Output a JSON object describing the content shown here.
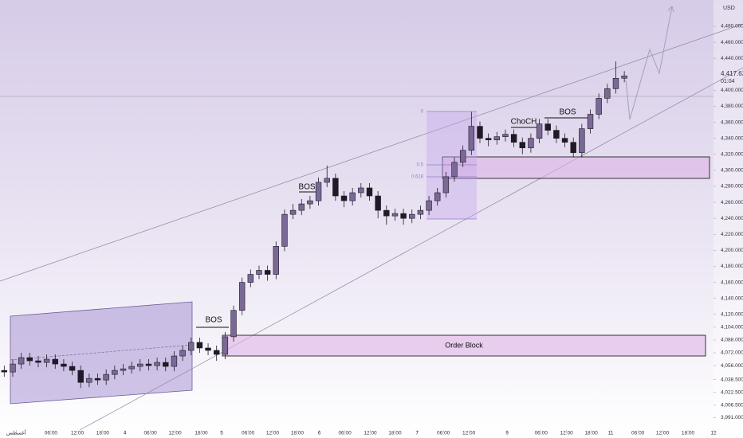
{
  "chart_data": {
    "type": "candlestick",
    "currency": "USD",
    "last_price": "4,417.630",
    "countdown": "01:04",
    "annotations": [
      "BOS",
      "BOS",
      "ChoCH",
      "BOS",
      "Order Block",
      "0",
      "0.5",
      "0.618"
    ],
    "up_color": "#7a6896",
    "down_color": "#1f1a26",
    "open": [
      4050,
      4048,
      4058,
      4066,
      4062,
      4060,
      4064,
      4058,
      4055,
      4050,
      4035,
      4040,
      4038,
      4045,
      4050,
      4052,
      4055,
      4058,
      4056,
      4060,
      4055,
      4068,
      4075,
      4085,
      4078,
      4075,
      4070,
      4092,
      4125,
      4160,
      4170,
      4175,
      4170,
      4205,
      4245,
      4250,
      4258,
      4262,
      4285,
      4290,
      4268,
      4262,
      4272,
      4278,
      4268,
      4250,
      4243,
      4246,
      4240,
      4245,
      4250,
      4262,
      4272,
      4292,
      4310,
      4325,
      4355,
      4340,
      4338,
      4342,
      4345,
      4335,
      4328,
      4340,
      4358,
      4350,
      4340,
      4335,
      4322,
      4352,
      4370,
      4390,
      4402,
      4415
    ],
    "high": [
      4056,
      4064,
      4072,
      4072,
      4068,
      4070,
      4070,
      4064,
      4061,
      4056,
      4046,
      4046,
      4051,
      4056,
      4058,
      4061,
      4064,
      4064,
      4066,
      4066,
      4074,
      4081,
      4091,
      4091,
      4084,
      4081,
      4098,
      4131,
      4166,
      4176,
      4181,
      4181,
      4211,
      4251,
      4258,
      4264,
      4268,
      4291,
      4306,
      4296,
      4274,
      4278,
      4284,
      4284,
      4274,
      4256,
      4252,
      4252,
      4251,
      4256,
      4268,
      4278,
      4298,
      4316,
      4331,
      4373,
      4361,
      4346,
      4348,
      4351,
      4351,
      4341,
      4346,
      4364,
      4364,
      4356,
      4346,
      4341,
      4358,
      4376,
      4396,
      4408,
      4436,
      4424
    ],
    "low": [
      4042,
      4042,
      4052,
      4056,
      4054,
      4054,
      4052,
      4049,
      4044,
      4028,
      4029,
      4032,
      4032,
      4039,
      4044,
      4046,
      4049,
      4050,
      4050,
      4049,
      4049,
      4062,
      4069,
      4072,
      4069,
      4062,
      4064,
      4086,
      4119,
      4154,
      4164,
      4162,
      4164,
      4199,
      4239,
      4244,
      4252,
      4256,
      4279,
      4262,
      4254,
      4256,
      4266,
      4262,
      4240,
      4232,
      4237,
      4232,
      4234,
      4239,
      4244,
      4256,
      4266,
      4286,
      4304,
      4319,
      4334,
      4330,
      4332,
      4336,
      4329,
      4320,
      4322,
      4334,
      4344,
      4334,
      4329,
      4316,
      4316,
      4346,
      4364,
      4384,
      4396,
      4410
    ],
    "close": [
      4048,
      4058,
      4066,
      4062,
      4060,
      4064,
      4058,
      4055,
      4050,
      4035,
      4040,
      4038,
      4045,
      4050,
      4052,
      4055,
      4058,
      4056,
      4060,
      4055,
      4068,
      4075,
      4085,
      4078,
      4075,
      4070,
      4092,
      4125,
      4160,
      4170,
      4175,
      4170,
      4205,
      4245,
      4250,
      4258,
      4262,
      4285,
      4290,
      4268,
      4262,
      4272,
      4278,
      4268,
      4250,
      4243,
      4246,
      4240,
      4245,
      4250,
      4262,
      4272,
      4292,
      4310,
      4325,
      4355,
      4340,
      4338,
      4342,
      4345,
      4335,
      4328,
      4340,
      4358,
      4350,
      4340,
      4335,
      4322,
      4352,
      4370,
      4390,
      4402,
      4415,
      4418
    ],
    "xlim": [
      0,
      84
    ],
    "xticks": [
      {
        "value": 1.9,
        "label": "أغسطس"
      },
      {
        "value": 6,
        "label": "06:00"
      },
      {
        "value": 9.1,
        "label": "12:00"
      },
      {
        "value": 12.1,
        "label": "18:00"
      },
      {
        "value": 14.7,
        "label": "4"
      },
      {
        "value": 17.7,
        "label": "06:00"
      },
      {
        "value": 20.6,
        "label": "12:00"
      },
      {
        "value": 23.7,
        "label": "18:00"
      },
      {
        "value": 26.1,
        "label": "5"
      },
      {
        "value": 29.2,
        "label": "06:00"
      },
      {
        "value": 32.1,
        "label": "12:00"
      },
      {
        "value": 35,
        "label": "18:00"
      },
      {
        "value": 37.6,
        "label": "6"
      },
      {
        "value": 40.6,
        "label": "06:00"
      },
      {
        "value": 43.6,
        "label": "12:00"
      },
      {
        "value": 46.5,
        "label": "18:00"
      },
      {
        "value": 49.1,
        "label": "7"
      },
      {
        "value": 52.2,
        "label": "06:00"
      },
      {
        "value": 55.2,
        "label": "12:00"
      },
      {
        "value": 59.7,
        "label": "9"
      },
      {
        "value": 63.7,
        "label": "06:00"
      },
      {
        "value": 66.7,
        "label": "12:00"
      },
      {
        "value": 69.6,
        "label": "18:00"
      },
      {
        "value": 71.9,
        "label": "11"
      },
      {
        "value": 75.1,
        "label": "06:00"
      },
      {
        "value": 78,
        "label": "12:00"
      },
      {
        "value": 81,
        "label": "18:00"
      },
      {
        "value": 84,
        "label": "12"
      }
    ],
    "ylim": [
      3975.5,
      4512.8
    ],
    "yticks": [
      {
        "value": 4480,
        "label": "4,480.000"
      },
      {
        "value": 4460,
        "label": "4,460.000"
      },
      {
        "value": 4440,
        "label": "4,440.000"
      },
      {
        "value": 4400,
        "label": "4,400.000"
      },
      {
        "value": 4380,
        "label": "4,380.000"
      },
      {
        "value": 4360,
        "label": "4,360.000"
      },
      {
        "value": 4340,
        "label": "4,340.000"
      },
      {
        "value": 4320,
        "label": "4,320.000"
      },
      {
        "value": 4300,
        "label": "4,300.000"
      },
      {
        "value": 4280,
        "label": "4,280.000"
      },
      {
        "value": 4260,
        "label": "4,260.000"
      },
      {
        "value": 4240,
        "label": "4,240.000"
      },
      {
        "value": 4220,
        "label": "4,220.000"
      },
      {
        "value": 4200,
        "label": "4,200.000"
      },
      {
        "value": 4180,
        "label": "4,180.000"
      },
      {
        "value": 4160,
        "label": "4,160.000"
      },
      {
        "value": 4140,
        "label": "4,140.000"
      },
      {
        "value": 4120,
        "label": "4,120.000"
      },
      {
        "value": 4104,
        "label": "4,104.000"
      },
      {
        "value": 4088,
        "label": "4,088.000"
      },
      {
        "value": 4072,
        "label": "4,072.000"
      },
      {
        "value": 4056,
        "label": "4,056.000"
      },
      {
        "value": 4038.5,
        "label": "4,038.500"
      },
      {
        "value": 4022.5,
        "label": "4,022.500"
      },
      {
        "value": 4006.5,
        "label": "4,006.500"
      },
      {
        "value": 3991,
        "label": "3,991.000"
      }
    ]
  }
}
